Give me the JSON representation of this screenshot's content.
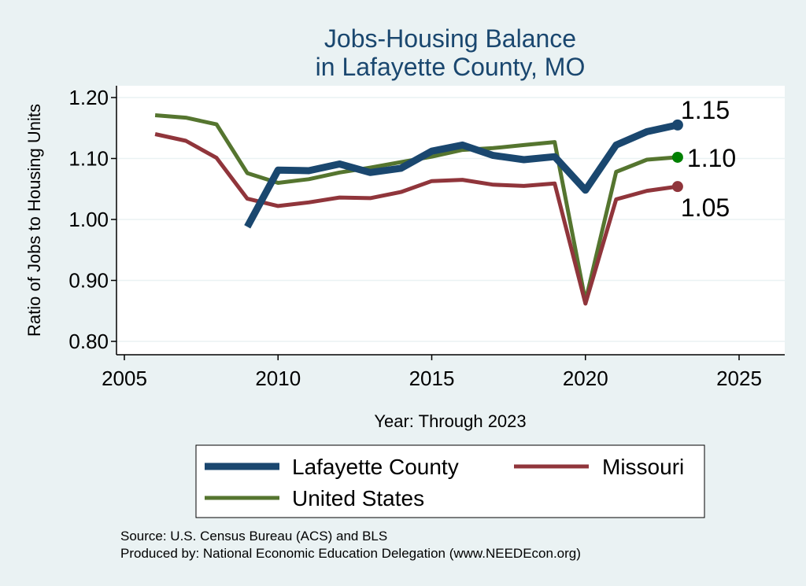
{
  "chart_data": {
    "type": "line",
    "title": [
      "Jobs-Housing Balance",
      "in Lafayette County, MO"
    ],
    "xlabel": "Year: Through 2023",
    "ylabel": "Ratio of Jobs to Housing Units",
    "xlim": [
      2005,
      2027
    ],
    "ylim": [
      0.785,
      1.222
    ],
    "xticks": [
      2005,
      2010,
      2015,
      2020,
      2025
    ],
    "yticks": [
      0.8,
      0.9,
      1.0,
      1.1,
      1.2
    ],
    "ytick_labels": [
      "0.80",
      "0.90",
      "1.00",
      "1.10",
      "1.20"
    ],
    "grid": true,
    "legend_position": "bottom",
    "series": [
      {
        "name": "Lafayette County",
        "color": "#1A476F",
        "x": [
          2009,
          2010,
          2011,
          2012,
          2013,
          2014,
          2015,
          2016,
          2017,
          2018,
          2019,
          2020,
          2021,
          2022,
          2023
        ],
        "values": [
          0.988,
          1.081,
          1.08,
          1.091,
          1.077,
          1.084,
          1.112,
          1.122,
          1.105,
          1.098,
          1.103,
          1.048,
          1.122,
          1.144,
          1.155
        ],
        "end_label": "1.15",
        "end_marker_color": "#1A476F"
      },
      {
        "name": "Missouri",
        "color": "#90353B",
        "x": [
          2006,
          2007,
          2008,
          2009,
          2010,
          2011,
          2012,
          2013,
          2014,
          2015,
          2016,
          2017,
          2018,
          2019,
          2020,
          2021,
          2022,
          2023
        ],
        "values": [
          1.14,
          1.129,
          1.101,
          1.034,
          1.022,
          1.028,
          1.036,
          1.035,
          1.045,
          1.063,
          1.065,
          1.057,
          1.055,
          1.059,
          0.862,
          1.033,
          1.047,
          1.054
        ],
        "end_label": "1.05",
        "end_marker_color": "#90353B"
      },
      {
        "name": "United States",
        "color": "#55752F",
        "x": [
          2006,
          2007,
          2008,
          2009,
          2010,
          2011,
          2012,
          2013,
          2014,
          2015,
          2016,
          2017,
          2018,
          2019,
          2020,
          2021,
          2022,
          2023
        ],
        "values": [
          1.171,
          1.167,
          1.156,
          1.076,
          1.06,
          1.066,
          1.077,
          1.085,
          1.094,
          1.103,
          1.114,
          1.117,
          1.122,
          1.127,
          0.866,
          1.078,
          1.098,
          1.102
        ],
        "end_label": "1.10",
        "end_marker_color": "#008000"
      }
    ],
    "legend": [
      {
        "label": "Lafayette County",
        "color": "#1A476F"
      },
      {
        "label": "Missouri",
        "color": "#90353B"
      },
      {
        "label": "United States",
        "color": "#55752F"
      }
    ]
  },
  "notes": {
    "source": "Source: U.S. Census Bureau (ACS) and BLS",
    "produced_by": "Produced by: National Economic Education Delegation (www.NEEDEcon.org)"
  }
}
